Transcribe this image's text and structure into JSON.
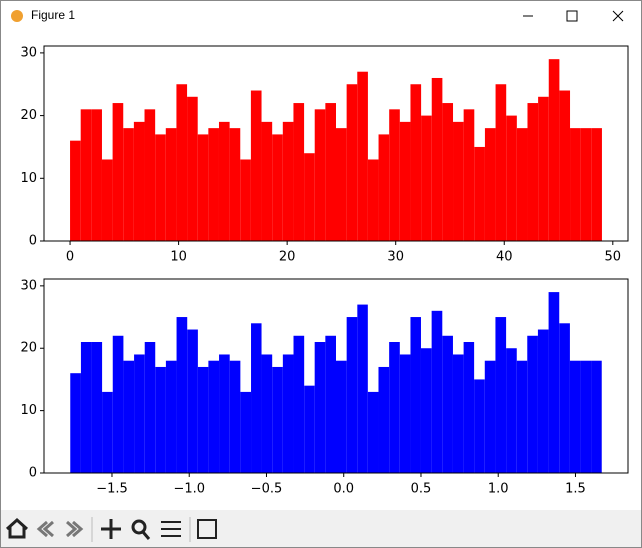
{
  "window": {
    "title": "Figure 1"
  },
  "chart_data": [
    {
      "type": "histogram",
      "color": "#ff0000",
      "values": [
        16,
        21,
        21,
        13,
        22,
        18,
        19,
        21,
        17,
        18,
        25,
        23,
        17,
        18,
        19,
        18,
        13,
        24,
        19,
        17,
        19,
        22,
        14,
        21,
        22,
        18,
        25,
        27,
        13,
        17,
        21,
        19,
        25,
        20,
        26,
        22,
        19,
        21,
        15,
        18,
        25,
        20,
        18,
        22,
        23,
        29,
        24,
        18,
        18,
        18
      ],
      "bins": [
        0,
        0.98,
        1.96,
        2.94,
        3.92,
        4.9,
        5.88,
        6.86,
        7.84,
        8.82,
        9.8,
        10.78,
        11.76,
        12.74,
        13.72,
        14.7,
        15.68,
        16.66,
        17.64,
        18.62,
        19.6,
        20.58,
        21.56,
        22.54,
        23.52,
        24.5,
        25.48,
        26.46,
        27.44,
        28.42,
        29.4,
        30.38,
        31.36,
        32.34,
        33.32,
        34.3,
        35.28,
        36.26,
        37.24,
        38.22,
        39.2,
        40.18,
        41.16,
        42.14,
        43.12,
        44.1,
        45.08,
        46.06,
        47.04,
        48.02,
        49
      ],
      "xlim": [
        -2.4,
        51.4
      ],
      "ylim": [
        0,
        31.1
      ],
      "xticks": [
        0,
        10,
        20,
        30,
        40,
        50
      ],
      "yticks": [
        0,
        10,
        20,
        30
      ]
    },
    {
      "type": "histogram",
      "color": "#0000ff",
      "values": [
        16,
        21,
        21,
        13,
        22,
        18,
        19,
        21,
        17,
        18,
        25,
        23,
        17,
        18,
        19,
        18,
        13,
        24,
        19,
        17,
        19,
        22,
        14,
        21,
        22,
        18,
        25,
        27,
        13,
        17,
        21,
        19,
        25,
        20,
        26,
        22,
        19,
        21,
        15,
        18,
        25,
        20,
        18,
        22,
        23,
        29,
        24,
        18,
        18,
        18
      ],
      "bins": [
        -1.77,
        -1.701,
        -1.632,
        -1.564,
        -1.495,
        -1.426,
        -1.357,
        -1.288,
        -1.22,
        -1.151,
        -1.082,
        -1.013,
        -0.944,
        -0.876,
        -0.807,
        -0.738,
        -0.669,
        -0.6,
        -0.532,
        -0.463,
        -0.394,
        -0.325,
        -0.256,
        -0.188,
        -0.119,
        -0.05,
        0.019,
        0.088,
        0.156,
        0.225,
        0.294,
        0.363,
        0.432,
        0.5,
        0.569,
        0.638,
        0.707,
        0.776,
        0.844,
        0.913,
        0.982,
        1.051,
        1.12,
        1.188,
        1.257,
        1.326,
        1.395,
        1.464,
        1.532,
        1.601,
        1.67
      ],
      "xlim": [
        -1.94,
        1.84
      ],
      "ylim": [
        0,
        31.1
      ],
      "xticks": [
        {
          "value": -1.5,
          "label": "−1.5"
        },
        {
          "value": -1.0,
          "label": "−1.0"
        },
        {
          "value": -0.5,
          "label": "−0.5"
        },
        {
          "value": 0,
          "label": "0.0"
        },
        0.5,
        {
          "value": 1.0,
          "label": "1.0"
        },
        1.5
      ],
      "yticks": [
        0,
        10,
        20,
        30
      ]
    }
  ]
}
